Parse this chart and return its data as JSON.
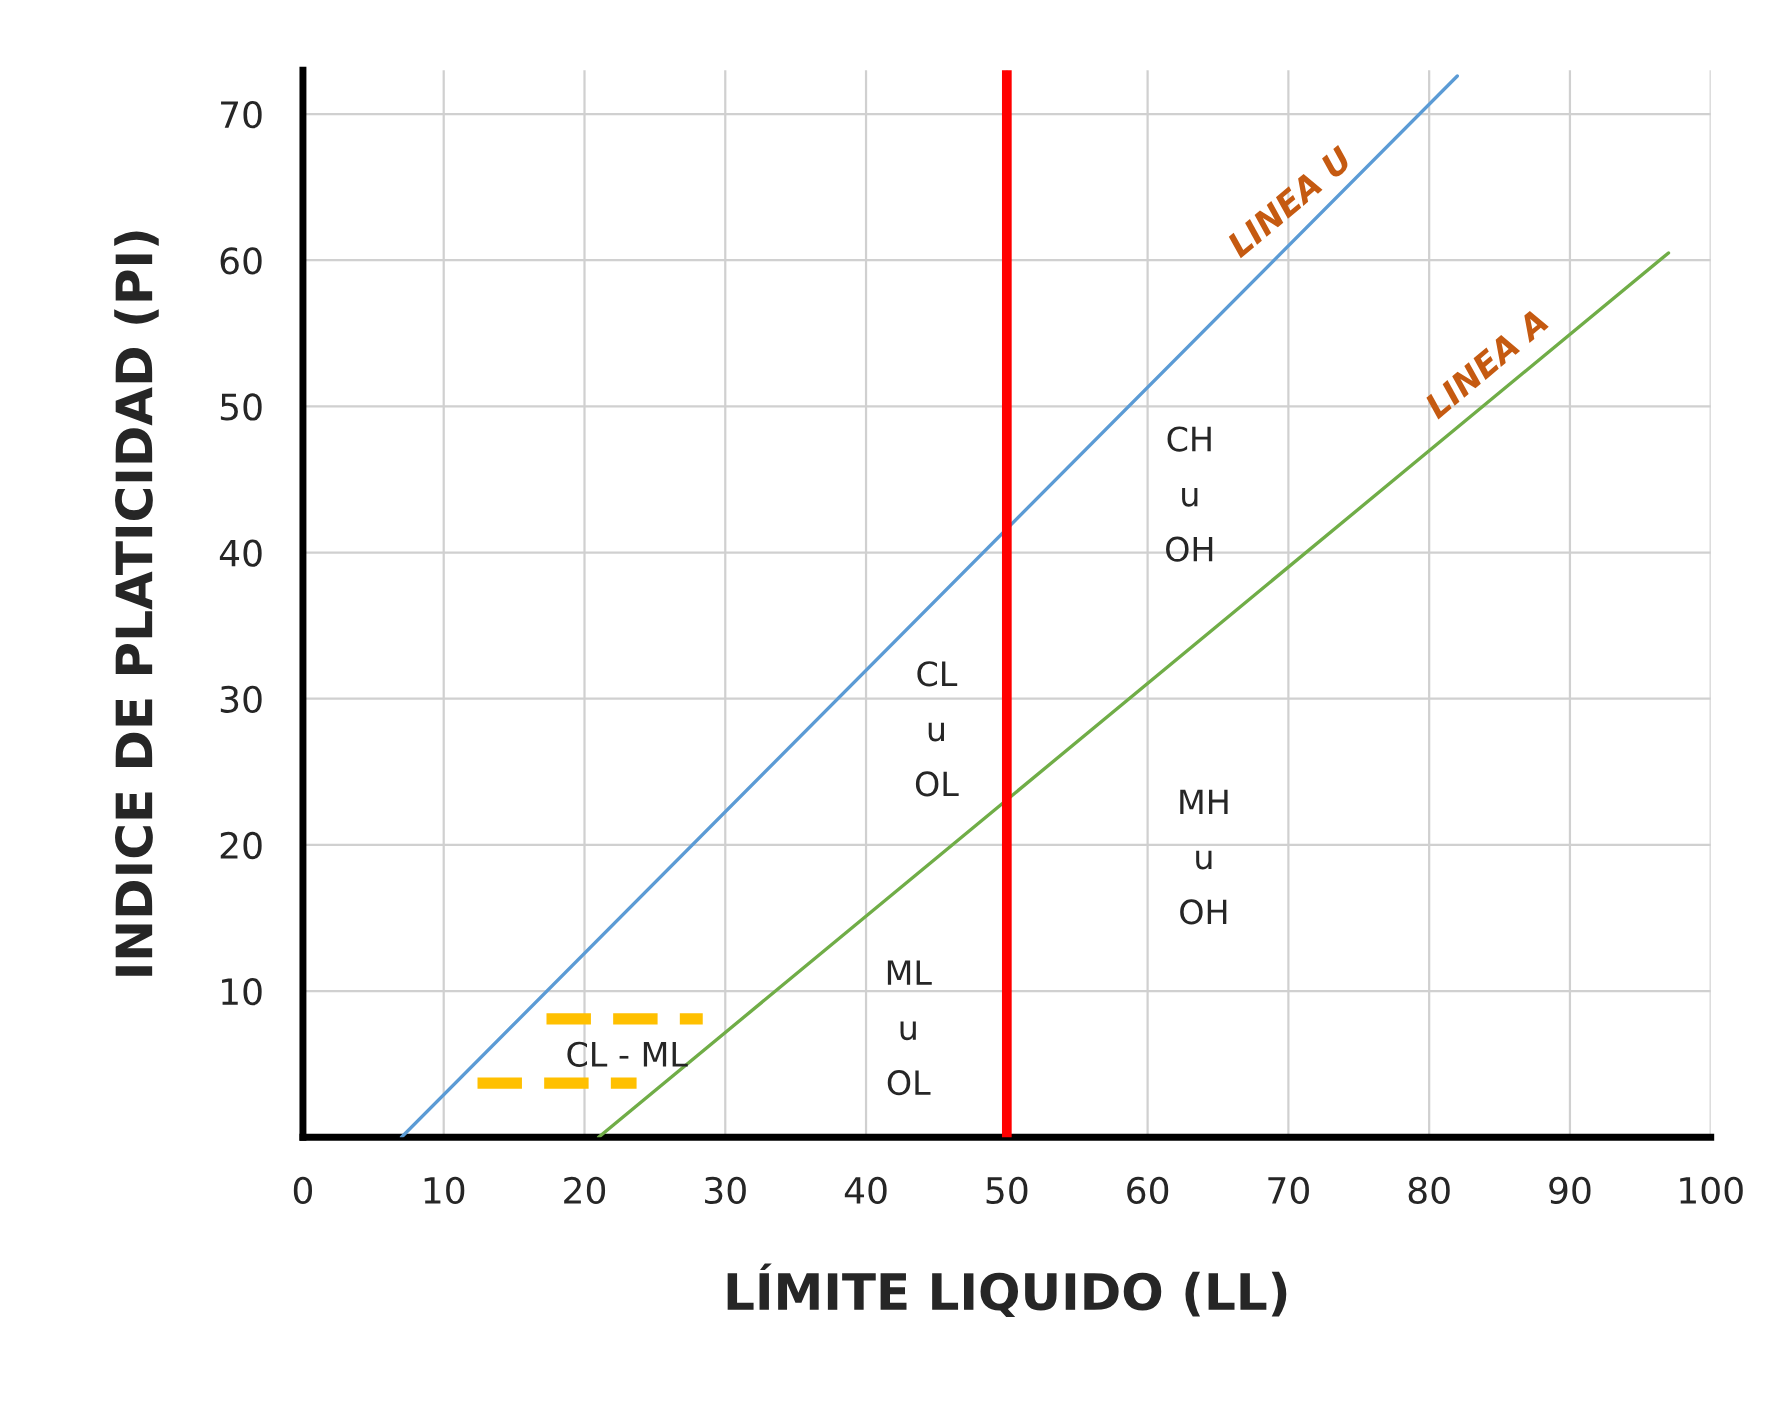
{
  "chart_data": {
    "type": "line",
    "xlabel": "LÍMITE LIQUIDO (LL)",
    "ylabel": "INDICE DE PLATICIDAD (PI)",
    "xlim": [
      0,
      100
    ],
    "ylim": [
      0,
      73
    ],
    "xticks": [
      0,
      10,
      20,
      30,
      40,
      50,
      60,
      70,
      80,
      90,
      100
    ],
    "yticks": [
      10,
      20,
      30,
      40,
      50,
      60,
      70
    ],
    "grid": true,
    "line_style": "solid",
    "series": [
      {
        "color": "#5b9bd5",
        "x": [
          7,
          82
        ],
        "values": [
          0,
          72.6
        ]
      },
      {
        "color": "#70ad47",
        "x": [
          21,
          97
        ],
        "values": [
          0,
          60.5
        ]
      },
      {
        "color": "#ffc000",
        "x": [
          17.3,
          28.4
        ],
        "values": [
          8.1,
          8.1
        ],
        "line_style": "dashed"
      },
      {
        "color": "#ffc000",
        "x": [
          12.4,
          23.7
        ],
        "values": [
          3.7,
          3.7
        ],
        "line_style": "dashed"
      }
    ],
    "ref_lines": [
      {
        "axis": "x",
        "value": 50,
        "label": null,
        "color": "#ff0000"
      }
    ],
    "annotations": [
      {
        "text": "LINEA U",
        "x": 71,
        "y": 61.95
      },
      {
        "text": "LINEA A",
        "x": 85,
        "y": 50.9
      },
      "CH\nu\nOH",
      "CL\nu\nOL",
      "MH\nu\nOH",
      "ML\nu\nOL",
      "CL - ML"
    ]
  }
}
